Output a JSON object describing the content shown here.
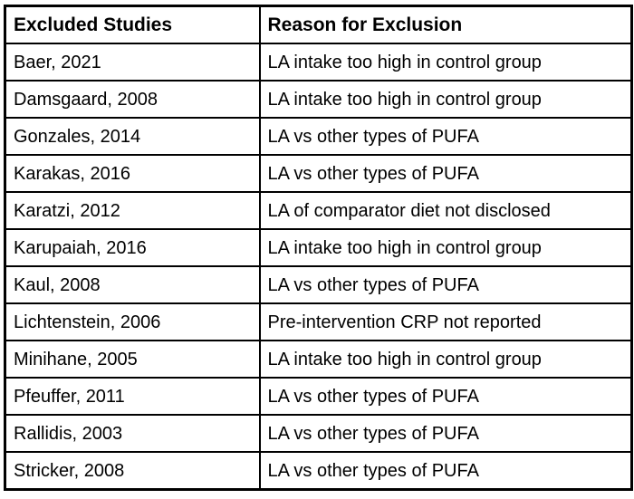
{
  "table": {
    "columns": [
      {
        "label": "Excluded Studies"
      },
      {
        "label": "Reason for Exclusion"
      }
    ],
    "rows": [
      {
        "study": "Baer, 2021",
        "reason": "LA intake too high in control group"
      },
      {
        "study": "Damsgaard, 2008",
        "reason": "LA intake too high in control group"
      },
      {
        "study": "Gonzales, 2014",
        "reason": "LA vs other types of PUFA"
      },
      {
        "study": "Karakas, 2016",
        "reason": "LA vs other types of PUFA"
      },
      {
        "study": "Karatzi, 2012",
        "reason": "LA of comparator diet not disclosed"
      },
      {
        "study": "Karupaiah, 2016",
        "reason": "LA intake too high in control group"
      },
      {
        "study": "Kaul, 2008",
        "reason": "LA vs other types of PUFA"
      },
      {
        "study": "Lichtenstein, 2006",
        "reason": "Pre-intervention CRP not reported"
      },
      {
        "study": "Minihane, 2005",
        "reason": "LA intake too high in control group"
      },
      {
        "study": "Pfeuffer, 2011",
        "reason": "LA vs other types of PUFA"
      },
      {
        "study": "Rallidis, 2003",
        "reason": "LA vs other types of PUFA"
      },
      {
        "study": "Stricker, 2008",
        "reason": "LA vs other types of PUFA"
      }
    ]
  },
  "colors": {
    "border": "#000000",
    "text": "#000000",
    "background": "#ffffff"
  }
}
